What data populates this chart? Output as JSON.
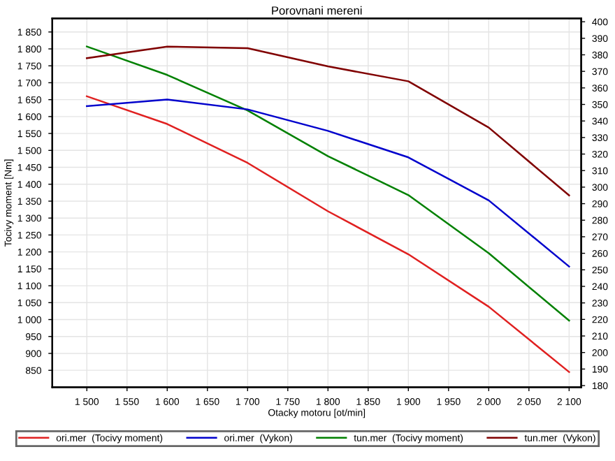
{
  "chart_data": {
    "type": "line",
    "title": "Porovnani mereni",
    "xlabel": "Otacky motoru [ot/min]",
    "ylabel": "Tocivy moment [Nm]",
    "x": [
      1500,
      1600,
      1700,
      1800,
      1900,
      2000,
      2100
    ],
    "series": [
      {
        "name": "ori.mer  (Tocivy moment)",
        "color": "#e02020",
        "values": [
          1660,
          1578,
          1463,
          1320,
          1193,
          1038,
          845
        ]
      },
      {
        "name": "ori.mer  (Vykon)",
        "color": "#0000cc",
        "axis": "y2",
        "values": [
          349,
          353,
          347,
          334,
          318,
          292,
          252
        ]
      },
      {
        "name": "tun.mer  (Tocivy moment)",
        "color": "#008000",
        "values": [
          1807,
          1723,
          1618,
          1483,
          1368,
          1196,
          997
        ]
      },
      {
        "name": "tun.mer  (Vykon)",
        "color": "#800000",
        "axis": "y2",
        "values": [
          378,
          385,
          384,
          373,
          364,
          336,
          295
        ]
      }
    ],
    "xlim": [
      1457,
      2115
    ],
    "xticks": [
      {
        "value": 1500,
        "label": "1 500"
      },
      {
        "value": 1550,
        "label": "1 550"
      },
      {
        "value": 1600,
        "label": "1 600"
      },
      {
        "value": 1650,
        "label": "1 650"
      },
      {
        "value": 1700,
        "label": "1 700"
      },
      {
        "value": 1750,
        "label": "1 750"
      },
      {
        "value": 1800,
        "label": "1 800"
      },
      {
        "value": 1850,
        "label": "1 850"
      },
      {
        "value": 1900,
        "label": "1 900"
      },
      {
        "value": 1950,
        "label": "1 950"
      },
      {
        "value": 2000,
        "label": "2 000"
      },
      {
        "value": 2050,
        "label": "2 050"
      },
      {
        "value": 2100,
        "label": "2 100"
      }
    ],
    "ylim": [
      800,
      1890
    ],
    "yticks": [
      850,
      900,
      950,
      {
        "value": 1000,
        "label": "1 000"
      },
      {
        "value": 1050,
        "label": "1 050"
      },
      {
        "value": 1100,
        "label": "1 100"
      },
      {
        "value": 1150,
        "label": "1 150"
      },
      {
        "value": 1200,
        "label": "1 200"
      },
      {
        "value": 1250,
        "label": "1 250"
      },
      {
        "value": 1300,
        "label": "1 300"
      },
      {
        "value": 1350,
        "label": "1 350"
      },
      {
        "value": 1400,
        "label": "1 400"
      },
      {
        "value": 1450,
        "label": "1 450"
      },
      {
        "value": 1500,
        "label": "1 500"
      },
      {
        "value": 1550,
        "label": "1 550"
      },
      {
        "value": 1600,
        "label": "1 600"
      },
      {
        "value": 1650,
        "label": "1 650"
      },
      {
        "value": 1700,
        "label": "1 700"
      },
      {
        "value": 1750,
        "label": "1 750"
      },
      {
        "value": 1800,
        "label": "1 800"
      },
      {
        "value": 1850,
        "label": "1 850"
      }
    ],
    "y2lim": [
      179,
      402
    ],
    "y2ticks": [
      180,
      190,
      200,
      210,
      220,
      230,
      240,
      250,
      260,
      270,
      280,
      290,
      300,
      310,
      320,
      330,
      340,
      350,
      360,
      370,
      380,
      390,
      400
    ],
    "grid": true,
    "legend": "bottom",
    "marker": "none",
    "line_style": "solid"
  }
}
